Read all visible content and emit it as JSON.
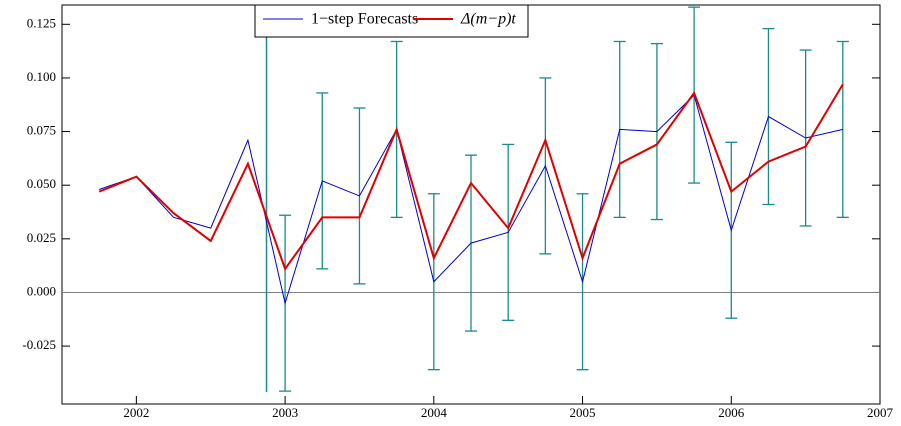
{
  "chart_data": {
    "type": "line",
    "x": [
      2001.75,
      2002.0,
      2002.25,
      2002.5,
      2002.75,
      2003.0,
      2003.25,
      2003.5,
      2003.75,
      2004.0,
      2004.25,
      2004.5,
      2004.75,
      2005.0,
      2005.25,
      2005.5,
      2005.75,
      2006.0,
      2006.25,
      2006.5,
      2006.75
    ],
    "series": [
      {
        "name": "1−step Forecasts",
        "color": "#0000cc",
        "values": [
          0.048,
          0.054,
          0.035,
          0.03,
          0.071,
          -0.005,
          0.052,
          0.045,
          0.076,
          0.005,
          0.023,
          0.028,
          0.059,
          0.005,
          0.076,
          0.075,
          0.092,
          0.029,
          0.082,
          0.072,
          0.076
        ],
        "errors": [
          null,
          null,
          null,
          null,
          null,
          0.041,
          0.041,
          0.041,
          0.041,
          0.041,
          0.041,
          0.041,
          0.041,
          0.041,
          0.041,
          0.041,
          0.041,
          0.041,
          0.041,
          0.041,
          0.041
        ],
        "error_color": "#1a8a8a"
      },
      {
        "name": "Δ(m−p)t",
        "color": "#e00000",
        "values": [
          0.047,
          0.054,
          0.037,
          0.024,
          0.06,
          0.011,
          0.035,
          0.035,
          0.076,
          0.016,
          0.051,
          0.03,
          0.071,
          0.016,
          0.06,
          0.069,
          0.093,
          0.047,
          0.061,
          0.068,
          0.097
        ]
      }
    ],
    "xlim": [
      2001.5,
      2007
    ],
    "xticks": [
      2002,
      2003,
      2004,
      2005,
      2006,
      2007
    ],
    "ylim": [
      -0.052,
      0.134
    ],
    "yticks": [
      {
        "value": -0.025,
        "label": "-0.025"
      },
      {
        "value": 0,
        "label": "0.000"
      },
      {
        "value": 0.025,
        "label": "0.025"
      },
      {
        "value": 0.05,
        "label": "0.050"
      },
      {
        "value": 0.075,
        "label": "0.075"
      },
      {
        "value": 0.1,
        "label": "0.100"
      },
      {
        "value": 0.125,
        "label": "0.125"
      }
    ],
    "hline": 0,
    "vline_x": 2002.875,
    "legend": "top"
  }
}
